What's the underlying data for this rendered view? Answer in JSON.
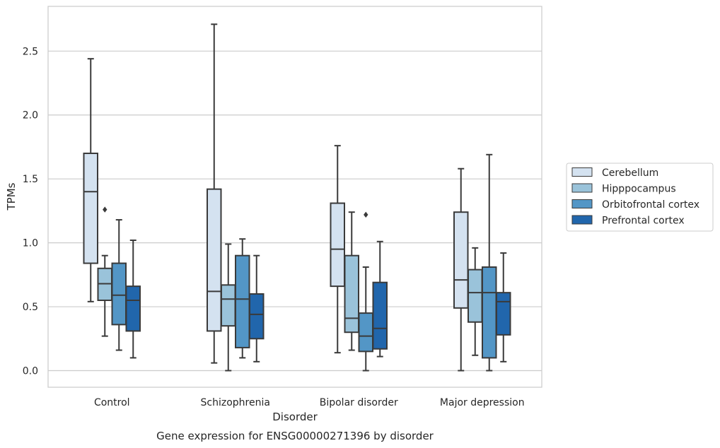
{
  "chart_data": {
    "type": "box",
    "caption": "Gene expression for ENSG00000271396 by disorder",
    "xlabel": "Disorder",
    "ylabel": "TPMs",
    "ylim": [
      -0.13,
      2.85
    ],
    "yticks": [
      "0.0",
      "0.5",
      "1.0",
      "1.5",
      "2.0",
      "2.5"
    ],
    "ytick_values": [
      0,
      0.5,
      1.0,
      1.5,
      2.0,
      2.5
    ],
    "grid": true,
    "legend_position": "right",
    "categories": [
      "Control",
      "Schizophrenia",
      "Bipolar disorder",
      "Major depression"
    ],
    "series": [
      {
        "name": "Cerebellum",
        "color": "#d4e2f0",
        "boxes": [
          {
            "whislo": 0.54,
            "q1": 0.84,
            "med": 1.4,
            "q3": 1.7,
            "whishi": 2.44,
            "fliers": []
          },
          {
            "whislo": 0.06,
            "q1": 0.31,
            "med": 0.62,
            "q3": 1.42,
            "whishi": 2.71,
            "fliers": []
          },
          {
            "whislo": 0.14,
            "q1": 0.66,
            "med": 0.95,
            "q3": 1.31,
            "whishi": 1.76,
            "fliers": []
          },
          {
            "whislo": 0.0,
            "q1": 0.49,
            "med": 0.71,
            "q3": 1.24,
            "whishi": 1.58,
            "fliers": []
          }
        ]
      },
      {
        "name": "Hipppocampus",
        "color": "#9ac3da",
        "boxes": [
          {
            "whislo": 0.27,
            "q1": 0.55,
            "med": 0.68,
            "q3": 0.8,
            "whishi": 0.9,
            "fliers": [
              1.26
            ]
          },
          {
            "whislo": 0.0,
            "q1": 0.35,
            "med": 0.56,
            "q3": 0.67,
            "whishi": 0.99,
            "fliers": []
          },
          {
            "whislo": 0.16,
            "q1": 0.3,
            "med": 0.41,
            "q3": 0.9,
            "whishi": 1.24,
            "fliers": []
          },
          {
            "whislo": 0.12,
            "q1": 0.38,
            "med": 0.61,
            "q3": 0.79,
            "whishi": 0.96,
            "fliers": []
          }
        ]
      },
      {
        "name": "Orbitofrontal cortex",
        "color": "#5396c6",
        "boxes": [
          {
            "whislo": 0.16,
            "q1": 0.36,
            "med": 0.59,
            "q3": 0.84,
            "whishi": 1.18,
            "fliers": []
          },
          {
            "whislo": 0.1,
            "q1": 0.18,
            "med": 0.56,
            "q3": 0.9,
            "whishi": 1.03,
            "fliers": []
          },
          {
            "whislo": 0.0,
            "q1": 0.15,
            "med": 0.27,
            "q3": 0.45,
            "whishi": 0.81,
            "fliers": [
              1.22
            ]
          },
          {
            "whislo": 0.0,
            "q1": 0.1,
            "med": 0.61,
            "q3": 0.81,
            "whishi": 1.69,
            "fliers": []
          }
        ]
      },
      {
        "name": "Prefrontal cortex",
        "color": "#2166ac",
        "boxes": [
          {
            "whislo": 0.1,
            "q1": 0.31,
            "med": 0.55,
            "q3": 0.66,
            "whishi": 1.02,
            "fliers": []
          },
          {
            "whislo": 0.07,
            "q1": 0.25,
            "med": 0.44,
            "q3": 0.6,
            "whishi": 0.9,
            "fliers": []
          },
          {
            "whislo": 0.11,
            "q1": 0.17,
            "med": 0.33,
            "q3": 0.69,
            "whishi": 1.01,
            "fliers": []
          },
          {
            "whislo": 0.07,
            "q1": 0.28,
            "med": 0.54,
            "q3": 0.61,
            "whishi": 0.92,
            "fliers": []
          }
        ]
      }
    ],
    "colors": {
      "grid": "#cccccc",
      "frame": "#cccccc",
      "line": "#3a3a3a",
      "text": "#262626"
    }
  }
}
